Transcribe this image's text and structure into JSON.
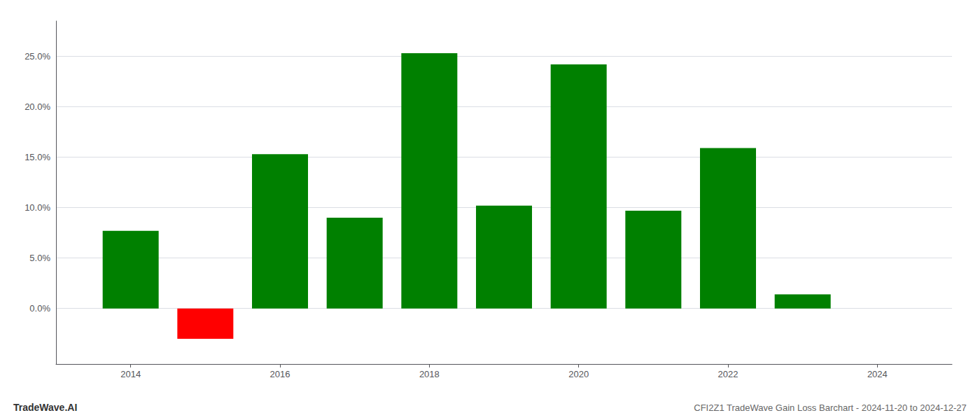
{
  "chart_data": {
    "type": "bar",
    "title": "CFI2Z1 TradeWave Gain Loss Barchart - 2024-11-20 to 2024-12-27",
    "annotations": [
      "TradeWave.AI"
    ],
    "x": [
      2014,
      2015,
      2016,
      2017,
      2018,
      2019,
      2020,
      2021,
      2022,
      2023
    ],
    "values": [
      0.077,
      -0.03,
      0.153,
      0.09,
      0.253,
      0.102,
      0.242,
      0.097,
      0.159,
      0.014
    ],
    "colors": [
      "#008000",
      "#ff0000",
      "#008000",
      "#008000",
      "#008000",
      "#008000",
      "#008000",
      "#008000",
      "#008000",
      "#008000"
    ],
    "xlim": [
      2013.0,
      2025.0
    ],
    "xticks": [
      2014,
      2016,
      2018,
      2020,
      2022,
      2024
    ],
    "ylim": [
      -0.055,
      0.285
    ],
    "yticks": [
      {
        "value": 0.0,
        "label": "0.0%"
      },
      {
        "value": 0.05,
        "label": "5.0%"
      },
      {
        "value": 0.1,
        "label": "10.0%"
      },
      {
        "value": 0.15,
        "label": "15.0%"
      },
      {
        "value": 0.2,
        "label": "20.0%"
      },
      {
        "value": 0.25,
        "label": "25.0%"
      }
    ],
    "grid": true
  }
}
